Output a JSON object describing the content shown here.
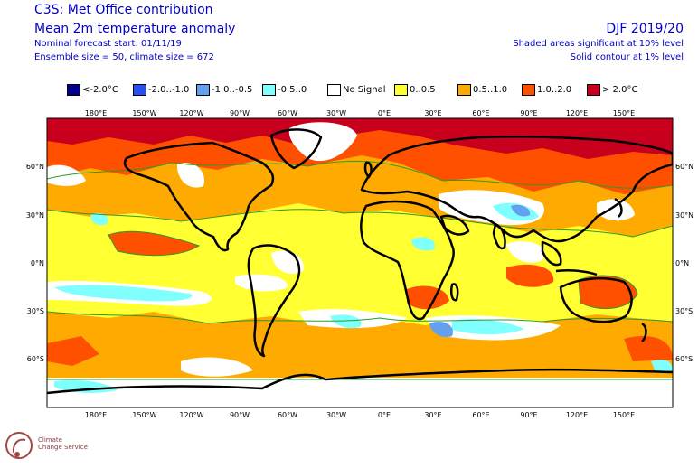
{
  "header": {
    "title": "C3S: Met Office contribution",
    "subtitle": "Mean 2m temperature anomaly",
    "forecast_start": "Nominal forecast start: 01/11/19",
    "ensemble": "Ensemble size = 50, climate size = 672",
    "period": "DJF 2019/20",
    "significance_shaded": "Shaded areas significant at 10% level",
    "significance_contour": "Solid contour at 1% level"
  },
  "legend": [
    {
      "label": "<-2.0°C",
      "color": "#00008c"
    },
    {
      "label": "-2.0..-1.0",
      "color": "#2850f0"
    },
    {
      "label": "-1.0..-0.5",
      "color": "#64a0f0"
    },
    {
      "label": "-0.5..0",
      "color": "#80ffff"
    },
    {
      "label": "No Signal",
      "color": "#ffffff"
    },
    {
      "label": "0..0.5",
      "color": "#ffff32"
    },
    {
      "label": "0.5..1.0",
      "color": "#ffaa00"
    },
    {
      "label": "1.0..2.0",
      "color": "#ff5000"
    },
    {
      "label": "> 2.0°C",
      "color": "#c8001e"
    }
  ],
  "map": {
    "lon_labels": [
      "180°E",
      "150°W",
      "120°W",
      "90°W",
      "60°W",
      "30°W",
      "0°E",
      "30°E",
      "60°E",
      "90°E",
      "120°E",
      "150°E"
    ],
    "lat_labels": [
      "60°N",
      "30°N",
      "0°N",
      "30°S",
      "60°S"
    ]
  },
  "logo": {
    "line1": "Climate",
    "line2": "Change Service"
  }
}
